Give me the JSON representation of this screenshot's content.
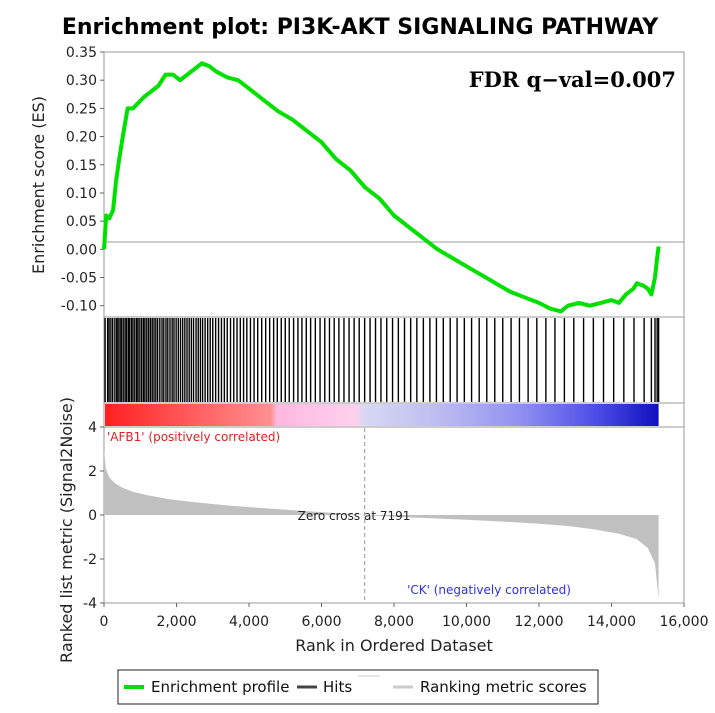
{
  "chart_data": {
    "type": "line",
    "title": "Enrichment plot: PI3K-AKT SIGNALING PATHWAY",
    "annotation": "FDR q−val=0.007",
    "xlabel": "Rank in Ordered Dataset",
    "xlim": [
      0,
      16000
    ],
    "x_ticks": [
      "0",
      "2,000",
      "4,000",
      "6,000",
      "8,000",
      "10,000",
      "12,000",
      "14,000",
      "16,000"
    ],
    "x_tick_values": [
      0,
      2000,
      4000,
      6000,
      8000,
      10000,
      12000,
      14000,
      16000
    ],
    "enrichment": {
      "ylabel": "Enrichment score (ES)",
      "ylim": [
        -0.12,
        0.35
      ],
      "y_ticks": [
        "0.35",
        "0.30",
        "0.25",
        "0.20",
        "0.15",
        "0.10",
        "0.05",
        "0.00",
        "-0.05",
        "-0.10"
      ],
      "y_tick_values": [
        0.35,
        0.3,
        0.25,
        0.2,
        0.15,
        0.1,
        0.05,
        0.0,
        -0.05,
        -0.1
      ],
      "series": [
        {
          "name": "Enrichment profile",
          "color": "#00e000",
          "x": [
            0,
            60,
            150,
            250,
            330,
            420,
            520,
            650,
            800,
            950,
            1100,
            1300,
            1500,
            1700,
            1900,
            2100,
            2300,
            2500,
            2700,
            2900,
            3100,
            3400,
            3700,
            4000,
            4400,
            4800,
            5200,
            5600,
            6000,
            6400,
            6800,
            7200,
            7600,
            8000,
            8400,
            8800,
            9200,
            9600,
            10000,
            10400,
            10800,
            11200,
            11600,
            12000,
            12300,
            12600,
            12800,
            13100,
            13400,
            13700,
            14000,
            14200,
            14400,
            14600,
            14700,
            14900,
            15000,
            15100,
            15200,
            15250,
            15300
          ],
          "y": [
            0.0,
            0.06,
            0.055,
            0.07,
            0.12,
            0.16,
            0.2,
            0.25,
            0.25,
            0.26,
            0.27,
            0.28,
            0.29,
            0.31,
            0.31,
            0.3,
            0.31,
            0.32,
            0.33,
            0.325,
            0.315,
            0.305,
            0.3,
            0.285,
            0.265,
            0.245,
            0.23,
            0.21,
            0.19,
            0.16,
            0.14,
            0.11,
            0.09,
            0.06,
            0.04,
            0.02,
            0.0,
            -0.015,
            -0.03,
            -0.045,
            -0.06,
            -0.075,
            -0.085,
            -0.095,
            -0.105,
            -0.11,
            -0.1,
            -0.095,
            -0.1,
            -0.095,
            -0.09,
            -0.095,
            -0.08,
            -0.07,
            -0.06,
            -0.065,
            -0.07,
            -0.08,
            -0.05,
            -0.02,
            0.005
          ]
        }
      ]
    },
    "hits": {
      "name": "Hits",
      "color": "#000000",
      "x": [
        30,
        100,
        140,
        190,
        240,
        300,
        350,
        390,
        440,
        480,
        530,
        580,
        620,
        670,
        710,
        760,
        800,
        850,
        900,
        940,
        990,
        1040,
        1090,
        1130,
        1180,
        1230,
        1280,
        1330,
        1380,
        1430,
        1480,
        1540,
        1600,
        1650,
        1710,
        1760,
        1820,
        1880,
        1930,
        1990,
        2050,
        2110,
        2170,
        2230,
        2290,
        2350,
        2410,
        2470,
        2540,
        2600,
        2660,
        2720,
        2790,
        2860,
        2930,
        3000,
        3080,
        3160,
        3240,
        3320,
        3400,
        3490,
        3580,
        3670,
        3760,
        3850,
        3940,
        4040,
        4140,
        4240,
        4350,
        4460,
        4570,
        4680,
        4780,
        4890,
        5000,
        5110,
        5230,
        5350,
        5460,
        5580,
        5700,
        5830,
        5960,
        6090,
        6220,
        6350,
        6480,
        6620,
        6760,
        6900,
        7040,
        7190,
        7340,
        7490,
        7640,
        7800,
        7960,
        8120,
        8290,
        8460,
        8630,
        8810,
        8990,
        9170,
        9360,
        9550,
        9740,
        9940,
        10140,
        10350,
        10560,
        10780,
        11000,
        11230,
        11460,
        11700,
        11940,
        12190,
        12440,
        12700,
        12960,
        13230,
        13500,
        13780,
        14060,
        14340,
        14620,
        14900,
        15100,
        15200,
        15260,
        15300
      ]
    },
    "ranking_metric": {
      "name": "Ranking metric scores",
      "color": "#c0c0c0",
      "ylabel": "Ranked list metric (Signal2Noise)",
      "ylim": [
        -4,
        4
      ],
      "y_ticks": [
        "4",
        "2",
        "0",
        "-2",
        "-4"
      ],
      "y_tick_values": [
        4,
        2,
        0,
        -2,
        -4
      ],
      "x": [
        0,
        50,
        150,
        300,
        500,
        800,
        1200,
        1800,
        2500,
        3500,
        4500,
        5500,
        6500,
        7191,
        8000,
        9000,
        10000,
        11000,
        12000,
        12800,
        13500,
        14200,
        14700,
        15000,
        15200,
        15300
      ],
      "y": [
        3.0,
        2.1,
        1.7,
        1.45,
        1.25,
        1.05,
        0.9,
        0.72,
        0.58,
        0.42,
        0.3,
        0.18,
        0.08,
        0.0,
        -0.08,
        -0.15,
        -0.22,
        -0.3,
        -0.4,
        -0.5,
        -0.65,
        -0.85,
        -1.1,
        -1.5,
        -2.2,
        -3.8
      ]
    },
    "zero_cross_label": "Zero cross at 7191",
    "zero_cross_x": 7191,
    "positive_label": "'AFB1' (positively correlated)",
    "negative_label": "'CK' (negatively correlated)",
    "positive_color": "#e02020",
    "negative_color": "#3030e0",
    "legend": {
      "position": "bottom",
      "items": [
        {
          "label": "Enrichment profile",
          "color": "#00e000"
        },
        {
          "label": "Hits",
          "color": "#444444"
        },
        {
          "label": "Ranking metric scores",
          "color": "#cccccc"
        }
      ]
    }
  }
}
